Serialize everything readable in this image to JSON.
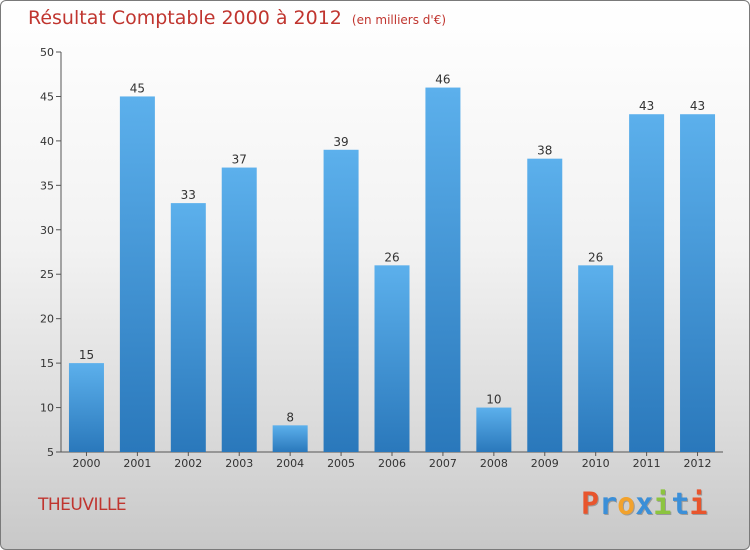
{
  "chart_data": {
    "type": "bar",
    "title": "Résultat Comptable 2000 à 2012",
    "subtitle": "(en milliers d'€)",
    "categories": [
      "2000",
      "2001",
      "2002",
      "2003",
      "2004",
      "2005",
      "2006",
      "2007",
      "2008",
      "2009",
      "2010",
      "2011",
      "2012"
    ],
    "values": [
      15,
      45,
      33,
      37,
      8,
      39,
      26,
      46,
      10,
      38,
      26,
      43,
      43
    ],
    "ylim": [
      5,
      50
    ],
    "yticks": [
      5,
      10,
      15,
      20,
      25,
      30,
      35,
      40,
      45,
      50
    ],
    "grid": false,
    "bar_color": "#4a9fe0",
    "bar_color_dark": "#2a78bb"
  },
  "commune": "THEUVILLE",
  "brand": {
    "letters": [
      "P",
      "r",
      "o",
      "x",
      "i",
      "t",
      "i"
    ],
    "colors": [
      "#e8552d",
      "#3b8fd8",
      "#f2a22c",
      "#3b8fd8",
      "#8cc43f",
      "#3b8fd8",
      "#e8552d"
    ]
  }
}
